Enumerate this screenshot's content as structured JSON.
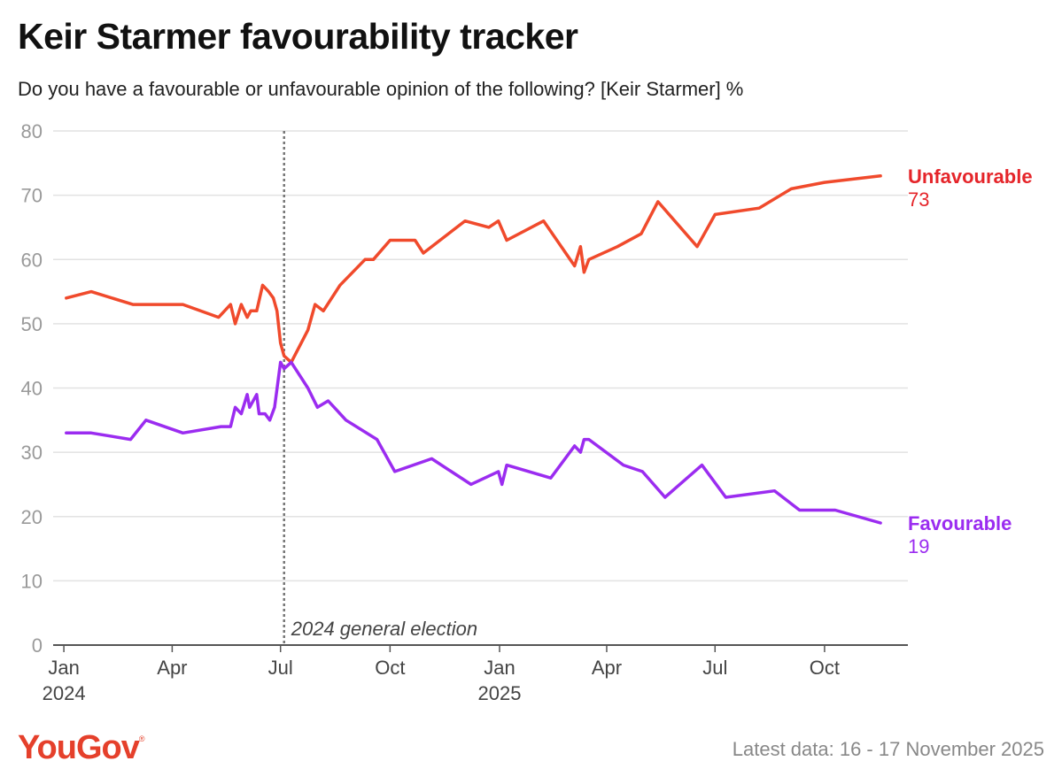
{
  "chart_data": {
    "type": "line",
    "title": "Keir Starmer favourability tracker",
    "subtitle": "Do you have a favourable or unfavourable opinion of the following? [Keir Starmer] %",
    "ylim": [
      0,
      80
    ],
    "yticks": [
      0,
      10,
      20,
      30,
      40,
      50,
      60,
      70,
      80
    ],
    "xlim": [
      "2023-12-23",
      "2025-12-10"
    ],
    "xticks": [
      {
        "date": "2024-01-01",
        "label": "Jan",
        "year": "2024"
      },
      {
        "date": "2024-04-01",
        "label": "Apr",
        "year": ""
      },
      {
        "date": "2024-07-01",
        "label": "Jul",
        "year": ""
      },
      {
        "date": "2024-10-01",
        "label": "Oct",
        "year": ""
      },
      {
        "date": "2025-01-01",
        "label": "Jan",
        "year": "2025"
      },
      {
        "date": "2025-04-01",
        "label": "Apr",
        "year": ""
      },
      {
        "date": "2025-07-01",
        "label": "Jul",
        "year": ""
      },
      {
        "date": "2025-10-01",
        "label": "Oct",
        "year": ""
      }
    ],
    "grid": true,
    "annotations": [
      {
        "date": "2024-07-04",
        "label": "2024 general election",
        "style": "dotted-vertical"
      }
    ],
    "series": [
      {
        "name": "Unfavourable",
        "color": "#f04a2c",
        "label_color": "#e5252a",
        "end_value": "73",
        "points": [
          [
            "2024-01-03",
            54
          ],
          [
            "2024-01-24",
            55
          ],
          [
            "2024-02-28",
            53
          ],
          [
            "2024-03-28",
            53
          ],
          [
            "2024-04-10",
            53
          ],
          [
            "2024-05-10",
            51
          ],
          [
            "2024-05-20",
            53
          ],
          [
            "2024-05-24",
            50
          ],
          [
            "2024-05-29",
            53
          ],
          [
            "2024-06-03",
            51
          ],
          [
            "2024-06-06",
            52
          ],
          [
            "2024-06-11",
            52
          ],
          [
            "2024-06-16",
            56
          ],
          [
            "2024-06-21",
            55
          ],
          [
            "2024-06-25",
            54
          ],
          [
            "2024-06-28",
            52
          ],
          [
            "2024-07-01",
            47
          ],
          [
            "2024-07-04",
            45
          ],
          [
            "2024-07-10",
            44
          ],
          [
            "2024-07-24",
            49
          ],
          [
            "2024-07-30",
            53
          ],
          [
            "2024-08-06",
            52
          ],
          [
            "2024-08-20",
            56
          ],
          [
            "2024-09-10",
            60
          ],
          [
            "2024-09-17",
            60
          ],
          [
            "2024-10-01",
            63
          ],
          [
            "2024-10-22",
            63
          ],
          [
            "2024-10-29",
            61
          ],
          [
            "2024-12-03",
            66
          ],
          [
            "2024-12-23",
            65
          ],
          [
            "2024-12-31",
            66
          ],
          [
            "2025-01-07",
            63
          ],
          [
            "2025-02-07",
            66
          ],
          [
            "2025-03-05",
            59
          ],
          [
            "2025-03-10",
            62
          ],
          [
            "2025-03-13",
            58
          ],
          [
            "2025-03-17",
            60
          ],
          [
            "2025-04-10",
            62
          ],
          [
            "2025-04-30",
            64
          ],
          [
            "2025-05-14",
            69
          ],
          [
            "2025-06-16",
            62
          ],
          [
            "2025-07-01",
            67
          ],
          [
            "2025-08-07",
            68
          ],
          [
            "2025-09-03",
            71
          ],
          [
            "2025-10-01",
            72
          ],
          [
            "2025-11-17",
            73
          ]
        ]
      },
      {
        "name": "Favourable",
        "color": "#9b2cf0",
        "label_color": "#9b2cf0",
        "end_value": "19",
        "points": [
          [
            "2024-01-03",
            33
          ],
          [
            "2024-01-24",
            33
          ],
          [
            "2024-02-26",
            32
          ],
          [
            "2024-03-10",
            35
          ],
          [
            "2024-04-10",
            33
          ],
          [
            "2024-05-12",
            34
          ],
          [
            "2024-05-20",
            34
          ],
          [
            "2024-05-24",
            37
          ],
          [
            "2024-05-29",
            36
          ],
          [
            "2024-06-03",
            39
          ],
          [
            "2024-06-05",
            37
          ],
          [
            "2024-06-11",
            39
          ],
          [
            "2024-06-13",
            36
          ],
          [
            "2024-06-18",
            36
          ],
          [
            "2024-06-22",
            35
          ],
          [
            "2024-06-26",
            37
          ],
          [
            "2024-07-01",
            44
          ],
          [
            "2024-07-04",
            43
          ],
          [
            "2024-07-10",
            44
          ],
          [
            "2024-07-24",
            40
          ],
          [
            "2024-08-01",
            37
          ],
          [
            "2024-08-10",
            38
          ],
          [
            "2024-08-25",
            35
          ],
          [
            "2024-09-20",
            32
          ],
          [
            "2024-10-05",
            27
          ],
          [
            "2024-11-05",
            29
          ],
          [
            "2024-12-08",
            25
          ],
          [
            "2024-12-31",
            27
          ],
          [
            "2025-01-03",
            25
          ],
          [
            "2025-01-07",
            28
          ],
          [
            "2025-02-13",
            26
          ],
          [
            "2025-03-05",
            31
          ],
          [
            "2025-03-10",
            30
          ],
          [
            "2025-03-13",
            32
          ],
          [
            "2025-03-17",
            32
          ],
          [
            "2025-04-15",
            28
          ],
          [
            "2025-05-01",
            27
          ],
          [
            "2025-05-20",
            23
          ],
          [
            "2025-06-20",
            28
          ],
          [
            "2025-07-10",
            23
          ],
          [
            "2025-08-20",
            24
          ],
          [
            "2025-09-10",
            21
          ],
          [
            "2025-10-10",
            21
          ],
          [
            "2025-11-17",
            19
          ]
        ]
      }
    ]
  },
  "footer": {
    "brand": "YouGov",
    "brand_mark": "®",
    "latest": "Latest data: 16 - 17 November 2025"
  }
}
